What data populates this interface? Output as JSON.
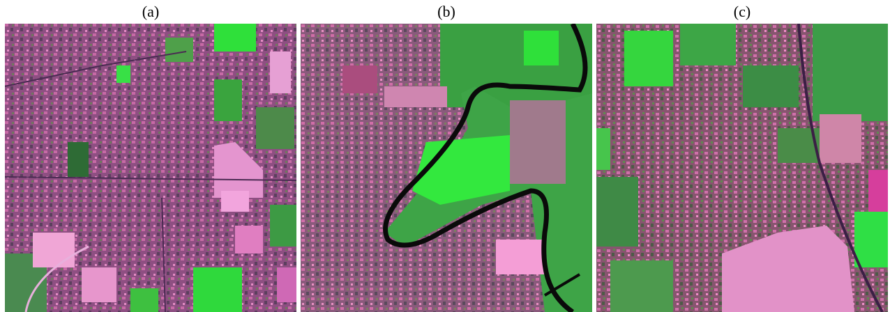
{
  "panels": [
    {
      "label": "(a)"
    },
    {
      "label": "(b)"
    },
    {
      "label": "(c)"
    }
  ],
  "colors": {
    "urban_magenta": "#9a4f86",
    "vegetation_green": "#3f9a3c",
    "bright_green": "#33e83a",
    "pink_field": "#e08ac4",
    "river_outline": "#0a0a0a",
    "road_purple": "#3b1f45"
  }
}
